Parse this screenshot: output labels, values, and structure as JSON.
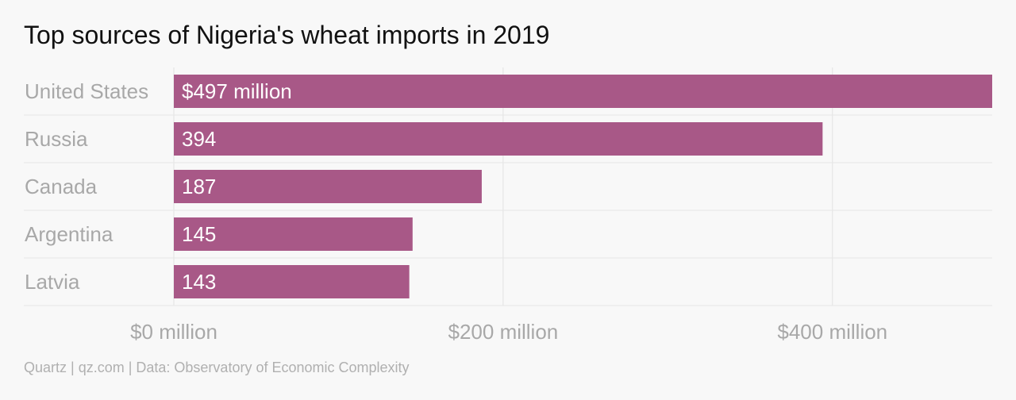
{
  "title": "Top sources of Nigeria's wheat imports in 2019",
  "source": "Quartz | qz.com | Data: Observatory of Economic Complexity",
  "colors": {
    "bar": "#a85887",
    "grid": "#e2e2e2",
    "separator": "#e6e6e6",
    "background": "#f8f8f8"
  },
  "chart_data": {
    "type": "bar",
    "orientation": "horizontal",
    "title": "Top sources of Nigeria's wheat imports in 2019",
    "xlabel": "",
    "ylabel": "",
    "unit": "$ million",
    "categories": [
      "United States",
      "Russia",
      "Canada",
      "Argentina",
      "Latvia"
    ],
    "values": [
      497,
      394,
      187,
      145,
      143
    ],
    "data_labels": [
      "$497 million",
      "394",
      "187",
      "145",
      "143"
    ],
    "x_ticks": [
      0,
      200,
      400
    ],
    "x_tick_labels": [
      "$0 million",
      "$200 million",
      "$400 million"
    ],
    "xlim": [
      0,
      497
    ],
    "grid": true,
    "legend": "none"
  }
}
